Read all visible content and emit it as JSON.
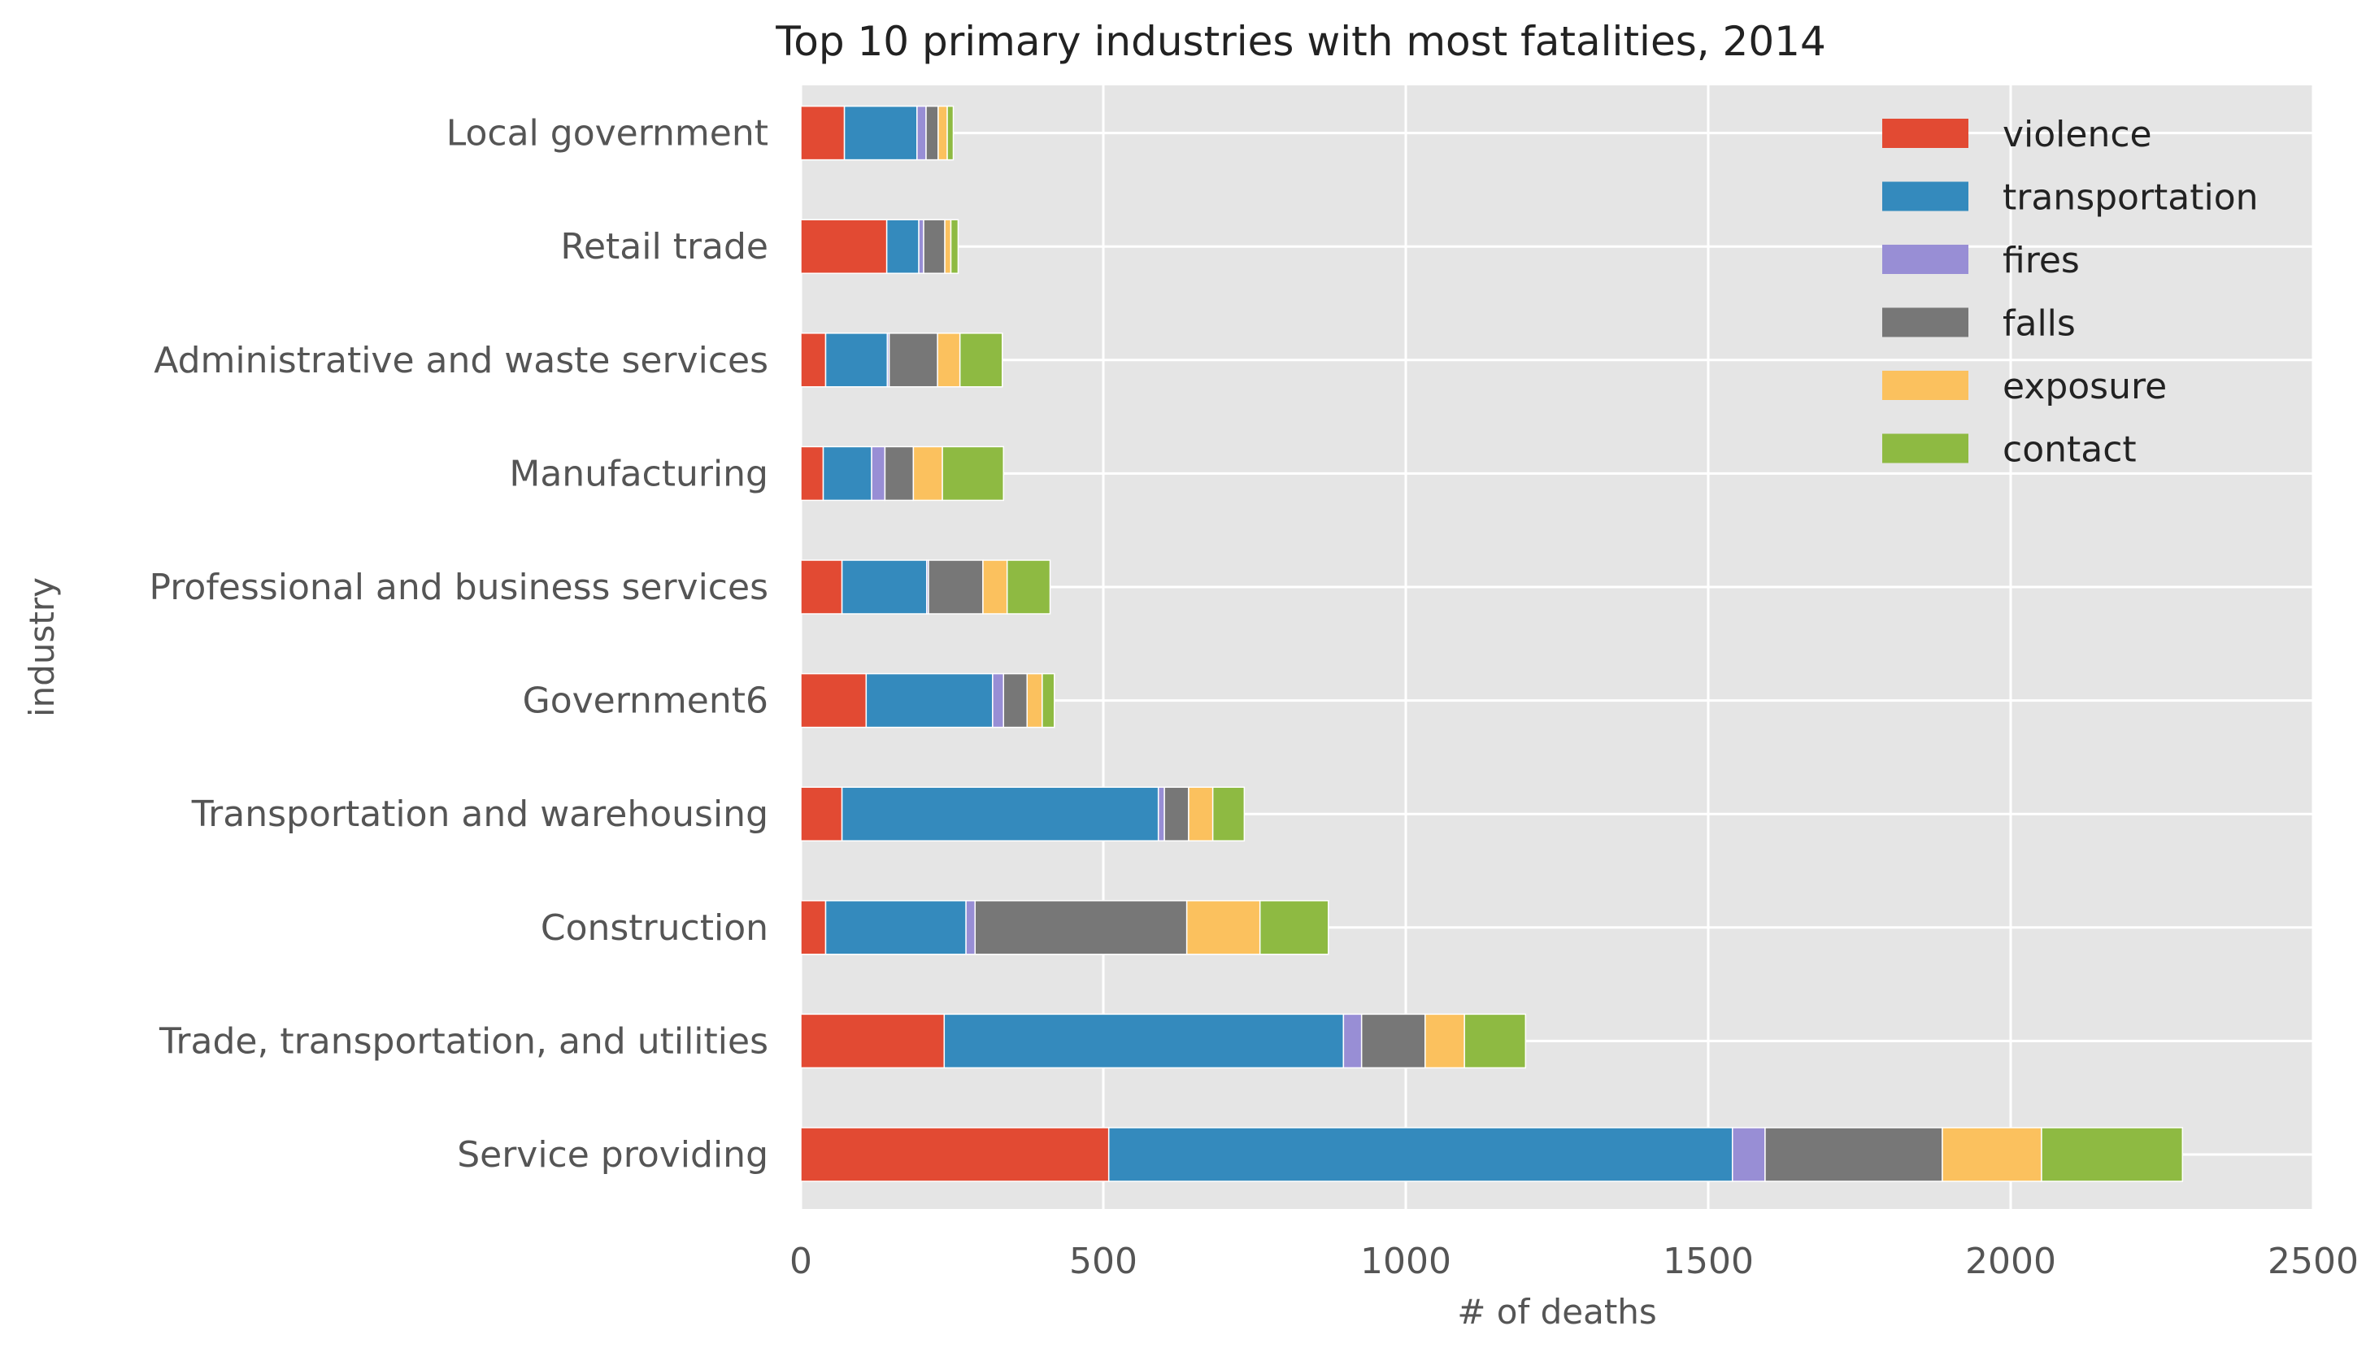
{
  "chart_data": {
    "type": "bar",
    "orientation": "horizontal",
    "stacked": true,
    "title": "Top 10 primary industries with most fatalities, 2014",
    "xlabel": "# of deaths",
    "ylabel": "industry",
    "xlim": [
      0,
      2500
    ],
    "xticks": [
      0,
      500,
      1000,
      1500,
      2000,
      2500
    ],
    "grid": true,
    "legend_position": "top-right",
    "categories": [
      "Service providing",
      "Trade, transportation, and utilities",
      "Construction",
      "Transportation and warehousing",
      "Government6",
      "Professional and business services",
      "Manufacturing",
      "Administrative and waste services",
      "Retail trade",
      "Local government"
    ],
    "series": [
      {
        "name": "violence",
        "color": "#E24A33",
        "values": [
          509,
          237,
          41,
          68,
          108,
          68,
          37,
          41,
          142,
          72
        ]
      },
      {
        "name": "transportation",
        "color": "#348ABD",
        "values": [
          1031,
          660,
          232,
          523,
          209,
          140,
          80,
          102,
          53,
          120
        ]
      },
      {
        "name": "fires",
        "color": "#988ED5",
        "values": [
          54,
          30,
          15,
          10,
          18,
          3,
          22,
          3,
          8,
          15
        ]
      },
      {
        "name": "falls",
        "color": "#777777",
        "values": [
          293,
          105,
          350,
          40,
          39,
          90,
          47,
          80,
          35,
          20
        ]
      },
      {
        "name": "exposure",
        "color": "#FBC15E",
        "values": [
          164,
          65,
          121,
          40,
          25,
          40,
          48,
          37,
          10,
          15
        ]
      },
      {
        "name": "contact",
        "color": "#8EBA42",
        "values": [
          233,
          101,
          113,
          52,
          20,
          71,
          101,
          70,
          12,
          10
        ]
      }
    ]
  }
}
